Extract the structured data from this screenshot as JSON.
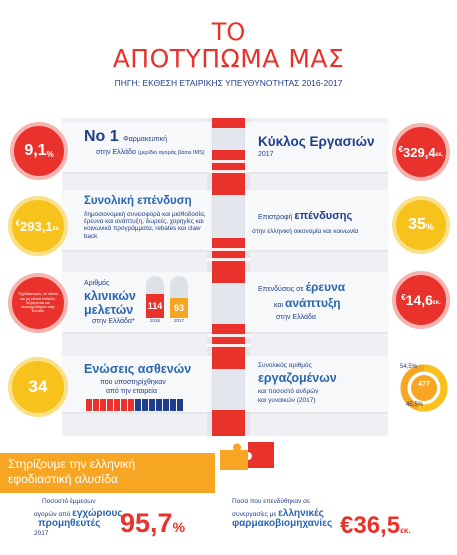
{
  "header": {
    "title_line1": "ΤΟ",
    "title_line2": "ΑΠΟΤΥΠΩΜΑ ΜΑΣ",
    "source": "ΠΗΓΗ: ΕΚΘΕΣΗ ΕΤΑΙΡΙΚΗΣ ΥΠΕΥΘΥΝΟΤΗΤΑΣ 2016-2017"
  },
  "row1": {
    "left_circle": "9,1",
    "left_circle_unit": "%",
    "left_head": "Νο 1",
    "left_head_suffix": "Φαρμακευτική",
    "left_sub": "στην Ελλάδα",
    "left_sub_note": "(μερίδιο αγοράς βάσει IMS)",
    "right_head": "Κύκλος Εργασιών",
    "right_sub": "2017",
    "right_circle_prefix": "€",
    "right_circle": "329,4",
    "right_circle_unit": "εκ."
  },
  "row2": {
    "left_circle_prefix": "€",
    "left_circle": "293,1",
    "left_circle_unit": "εκ.",
    "left_head": "Συνολική επένδυση",
    "left_body": "δημοσιονομική συνεισφορά και μισθοδοσία, έρευνα και ανάπτυξη, δωρεές, χορηγίες και κοινωνικά προγράμματα, rebates και claw back",
    "right_line1_pre": "Επιστροφή",
    "right_line1_emph": "επένδυσης",
    "right_line2": "στην ελληνική οικονομία και κοινωνία",
    "right_circle": "35",
    "right_circle_unit": "%"
  },
  "row3": {
    "left_circle_text": "*Σχεδιάστηκαν, σε εθνικό και μη εθνικό επίπεδο, διεξάγονται και ολοκληρώθηκαν στην Ελλάδα",
    "left_line1": "Αριθμός",
    "left_line2": "κλινικών",
    "left_line3": "μελετών",
    "left_line4": "στην Ελλάδα*",
    "bars": [
      {
        "value": "114",
        "year": "2016",
        "color": "#e8322b",
        "fill": 0.68
      },
      {
        "value": "93",
        "year": "2017",
        "color": "#f6a623",
        "fill": 0.56
      }
    ],
    "right_line1_pre": "Επενδύσεις σε",
    "right_line1_emph": "έρευνα",
    "right_line2_pre": "και",
    "right_line2_emph": "ανάπτυξη",
    "right_line3": "στην Ελλάδα",
    "right_circle_prefix": "€",
    "right_circle": "14,6",
    "right_circle_unit": "εκ."
  },
  "row4": {
    "left_circle": "34",
    "left_head": "Ενώσεις ασθενών",
    "left_sub1": "που υποστηρίχθηκαν",
    "left_sub2": "από την εταιρεία",
    "right_line1": "Συνολικός αριθμός",
    "right_line2": "εργαζομένων",
    "right_line3": "και ποσοστό ανδρών",
    "right_line4": "και γυναικών (2017)",
    "right_pct_top": "54,5%",
    "right_center": "477",
    "right_pct_bottom": "45,5%"
  },
  "banner": {
    "line1": "Στηρίζουμε την ελληνική",
    "line2": "εφοδιαστική αλυσίδα"
  },
  "bottom": {
    "left_line1": "Ποσοστό έμμεσων",
    "left_line2": "αγορών από",
    "left_line2_emph": "εγχώριους",
    "left_line3": "προμηθευτές",
    "left_line4": "2017",
    "left_value": "95,7",
    "left_unit": "%",
    "right_line1": "Ποσά που επενδύθηκαν σε",
    "right_line2_pre": "συνεργασίες με",
    "right_line2_emph": "ελληνικές",
    "right_line3": "φαρμακοβιομηχανίες",
    "right_value": "€36,5",
    "right_unit": "εκ."
  },
  "colors": {
    "accent_red": "#e8322b",
    "accent_orange": "#f6a623",
    "accent_yellow": "#f7c21c",
    "navy": "#1f3f8a"
  }
}
